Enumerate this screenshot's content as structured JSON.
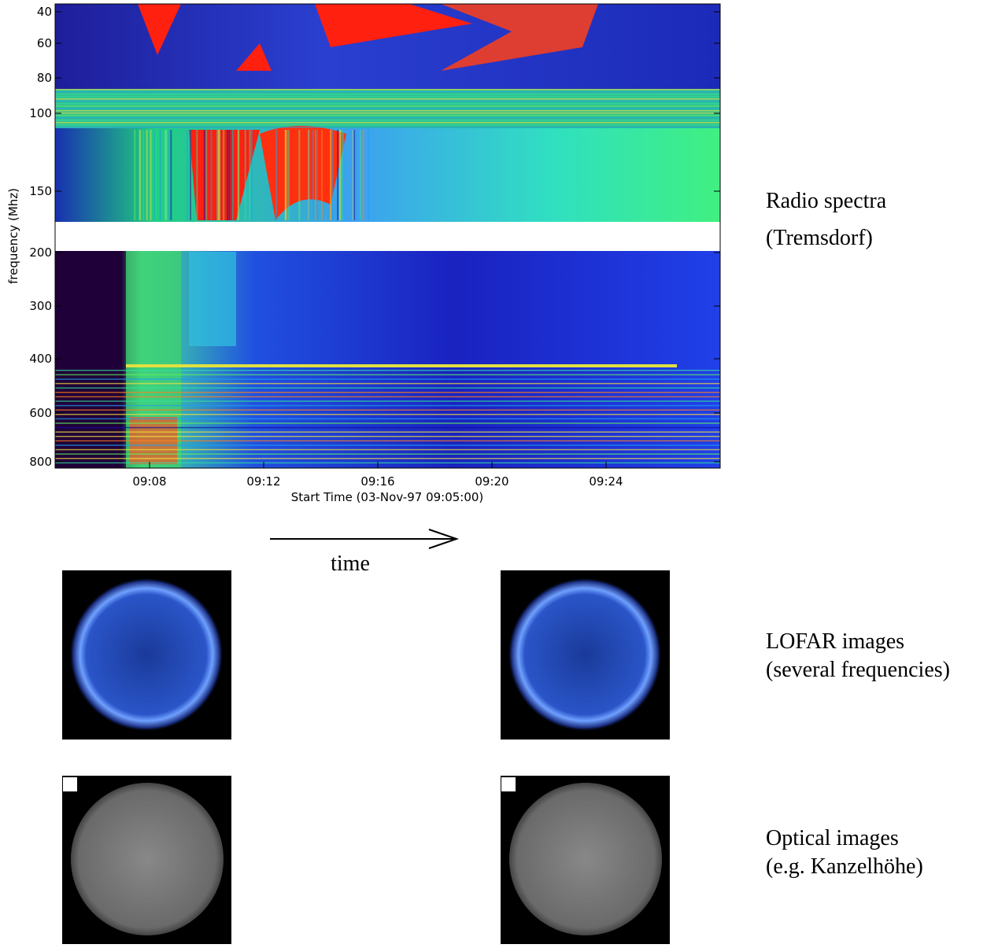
{
  "spectrum": {
    "y_axis_label": "frequency (Mhz)",
    "y_ticks": [
      40,
      60,
      80,
      100,
      150,
      200,
      300,
      400,
      600,
      800
    ],
    "x_ticks": [
      "09:08",
      "09:12",
      "09:16",
      "09:20",
      "09:24"
    ],
    "x_axis_label": "Start Time (03-Nov-97 09:05:00)"
  },
  "arrow_label": "time",
  "rows": [
    {
      "label": "Radio spectra",
      "sublabel": "(Tremsdorf)"
    },
    {
      "label": "LOFAR images",
      "sublabel": "(several frequencies)"
    },
    {
      "label": "Optical images",
      "sublabel": "(e.g. Kanzelhöhe)"
    }
  ]
}
